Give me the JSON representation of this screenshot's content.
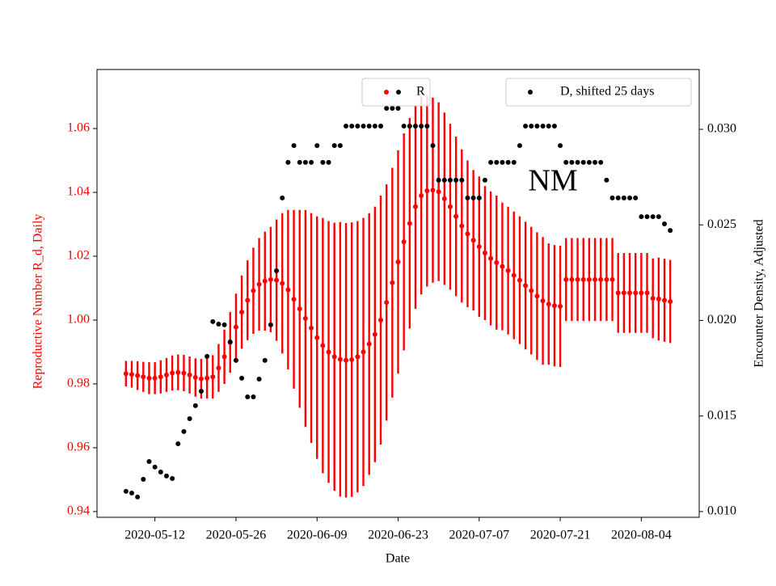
{
  "chart_data": {
    "type": "scatter",
    "xlabel": "Date",
    "ylabel": "Reproductive Number R_d, Daily",
    "y2label": "Encounter Density, Adjusted",
    "annotation": "NM",
    "x": [
      "2020-05-07",
      "2020-05-08",
      "2020-05-09",
      "2020-05-10",
      "2020-05-11",
      "2020-05-12",
      "2020-05-13",
      "2020-05-14",
      "2020-05-15",
      "2020-05-16",
      "2020-05-17",
      "2020-05-18",
      "2020-05-19",
      "2020-05-20",
      "2020-05-21",
      "2020-05-22",
      "2020-05-23",
      "2020-05-24",
      "2020-05-25",
      "2020-05-26",
      "2020-05-27",
      "2020-05-28",
      "2020-05-29",
      "2020-05-30",
      "2020-05-31",
      "2020-06-01",
      "2020-06-02",
      "2020-06-03",
      "2020-06-04",
      "2020-06-05",
      "2020-06-06",
      "2020-06-07",
      "2020-06-08",
      "2020-06-09",
      "2020-06-10",
      "2020-06-11",
      "2020-06-12",
      "2020-06-13",
      "2020-06-14",
      "2020-06-15",
      "2020-06-16",
      "2020-06-17",
      "2020-06-18",
      "2020-06-19",
      "2020-06-20",
      "2020-06-21",
      "2020-06-22",
      "2020-06-23",
      "2020-06-24",
      "2020-06-25",
      "2020-06-26",
      "2020-06-27",
      "2020-06-28",
      "2020-06-29",
      "2020-06-30",
      "2020-07-01",
      "2020-07-02",
      "2020-07-03",
      "2020-07-04",
      "2020-07-05",
      "2020-07-06",
      "2020-07-07",
      "2020-07-08",
      "2020-07-09",
      "2020-07-10",
      "2020-07-11",
      "2020-07-12",
      "2020-07-13",
      "2020-07-14",
      "2020-07-15",
      "2020-07-16",
      "2020-07-17",
      "2020-07-18",
      "2020-07-19",
      "2020-07-20",
      "2020-07-21",
      "2020-07-22",
      "2020-07-23",
      "2020-07-24",
      "2020-07-25",
      "2020-07-26",
      "2020-07-27",
      "2020-07-28",
      "2020-07-29",
      "2020-07-30",
      "2020-07-31",
      "2020-08-01",
      "2020-08-02",
      "2020-08-03",
      "2020-08-04",
      "2020-08-05",
      "2020-08-06",
      "2020-08-07",
      "2020-08-08",
      "2020-08-09"
    ],
    "xlim": [
      "2020-05-02",
      "2020-08-14"
    ],
    "xticks": [
      "2020-05-12",
      "2020-05-26",
      "2020-06-09",
      "2020-06-23",
      "2020-07-07",
      "2020-07-21",
      "2020-08-04"
    ],
    "ylim": [
      0.9382,
      1.0785
    ],
    "yticks": [
      0.94,
      0.96,
      0.98,
      {
        "value": 1,
        "label": "1.00"
      },
      1.02,
      1.04,
      1.06
    ],
    "y2lim": [
      0.0097,
      0.03313
    ],
    "y2ticks": [
      {
        "value": 0.01,
        "label": "0.010"
      },
      0.015,
      {
        "value": 0.02,
        "label": "0.020"
      },
      0.025,
      {
        "value": 0.03,
        "label": "0.030"
      }
    ],
    "series": [
      {
        "name": "R",
        "color": "#ff0000",
        "axis": "y",
        "legend": "upper center",
        "values": [
          0.9832,
          0.983,
          0.9826,
          0.9822,
          0.9818,
          0.9818,
          0.9822,
          0.9828,
          0.9834,
          0.9836,
          0.9834,
          0.9828,
          0.982,
          0.9816,
          0.9818,
          0.9822,
          0.985,
          0.9885,
          0.993,
          0.9978,
          1.0025,
          1.0062,
          1.0092,
          1.0112,
          1.0122,
          1.0127,
          1.0125,
          1.0115,
          1.0095,
          1.0065,
          1.0035,
          1.0005,
          0.9975,
          0.9945,
          0.992,
          0.99,
          0.9885,
          0.9877,
          0.9874,
          0.9876,
          0.9885,
          0.99,
          0.9925,
          0.9955,
          1.0,
          1.0055,
          1.0117,
          1.0182,
          1.0245,
          1.0303,
          1.0355,
          1.039,
          1.0405,
          1.0407,
          1.0402,
          1.038,
          1.0355,
          1.0325,
          1.0295,
          1.027,
          1.025,
          1.023,
          1.021,
          1.0193,
          1.018,
          1.0168,
          1.0155,
          1.014,
          1.0125,
          1.0108,
          1.0092,
          1.0075,
          1.006,
          1.005,
          1.0045,
          1.0043,
          1.0127,
          1.0127,
          1.0127,
          1.0127,
          1.0127,
          1.0127,
          1.0127,
          1.0127,
          1.0127,
          1.0085,
          1.0085,
          1.0085,
          1.0085,
          1.0085,
          1.0085,
          1.0068,
          1.0066,
          1.0062,
          1.0058
        ],
        "errors": [
          0.004,
          0.0042,
          0.0045,
          0.0047,
          0.005,
          0.005,
          0.0052,
          0.0053,
          0.0055,
          0.0056,
          0.0057,
          0.0058,
          0.006,
          0.0062,
          0.0064,
          0.0068,
          0.0075,
          0.0085,
          0.0095,
          0.0105,
          0.0115,
          0.0125,
          0.0135,
          0.0145,
          0.0155,
          0.0165,
          0.019,
          0.022,
          0.025,
          0.028,
          0.031,
          0.034,
          0.036,
          0.038,
          0.04,
          0.041,
          0.042,
          0.043,
          0.043,
          0.043,
          0.0425,
          0.042,
          0.041,
          0.04,
          0.039,
          0.037,
          0.036,
          0.035,
          0.034,
          0.033,
          0.032,
          0.031,
          0.03,
          0.029,
          0.028,
          0.027,
          0.026,
          0.025,
          0.024,
          0.023,
          0.022,
          0.022,
          0.021,
          0.021,
          0.021,
          0.02,
          0.02,
          0.02,
          0.02,
          0.02,
          0.02,
          0.02,
          0.02,
          0.019,
          0.019,
          0.019,
          0.013,
          0.013,
          0.013,
          0.013,
          0.013,
          0.013,
          0.013,
          0.013,
          0.013,
          0.0125,
          0.0125,
          0.0125,
          0.0125,
          0.0125,
          0.0125,
          0.0125,
          0.013,
          0.013,
          0.013
        ]
      },
      {
        "name": "D, shifted 25 days",
        "color": "#000000",
        "axis": "y2",
        "legend": "upper right",
        "values": [
          0.01106,
          0.01097,
          0.01076,
          0.01169,
          0.01262,
          0.01233,
          0.01207,
          0.01186,
          0.01173,
          0.01355,
          0.01419,
          0.01486,
          0.01554,
          0.0163,
          0.01812,
          0.01994,
          0.01981,
          0.01977,
          0.01888,
          0.01791,
          0.01698,
          0.016,
          0.016,
          0.01693,
          0.01791,
          0.01977,
          0.0226,
          0.02641,
          0.02827,
          0.02915,
          0.02827,
          0.02827,
          0.02827,
          0.02915,
          0.02827,
          0.02827,
          0.02915,
          0.02915,
          0.03017,
          0.03017,
          0.03017,
          0.03017,
          0.03017,
          0.03017,
          0.03017,
          0.0311,
          0.0311,
          0.0311,
          0.03017,
          0.03017,
          0.03017,
          0.03017,
          0.03017,
          0.02915,
          0.02734,
          0.02734,
          0.02734,
          0.02734,
          0.02734,
          0.02641,
          0.02641,
          0.02641,
          0.02734,
          0.02827,
          0.02827,
          0.02827,
          0.02827,
          0.02827,
          0.02915,
          0.03017,
          0.03017,
          0.03017,
          0.03017,
          0.03017,
          0.03017,
          0.02915,
          0.02827,
          0.02827,
          0.02827,
          0.02827,
          0.02827,
          0.02827,
          0.02827,
          0.02734,
          0.02641,
          0.02641,
          0.02641,
          0.02641,
          0.02641,
          0.02543,
          0.02543,
          0.02543,
          0.02543,
          0.02505,
          0.02471
        ]
      }
    ]
  }
}
